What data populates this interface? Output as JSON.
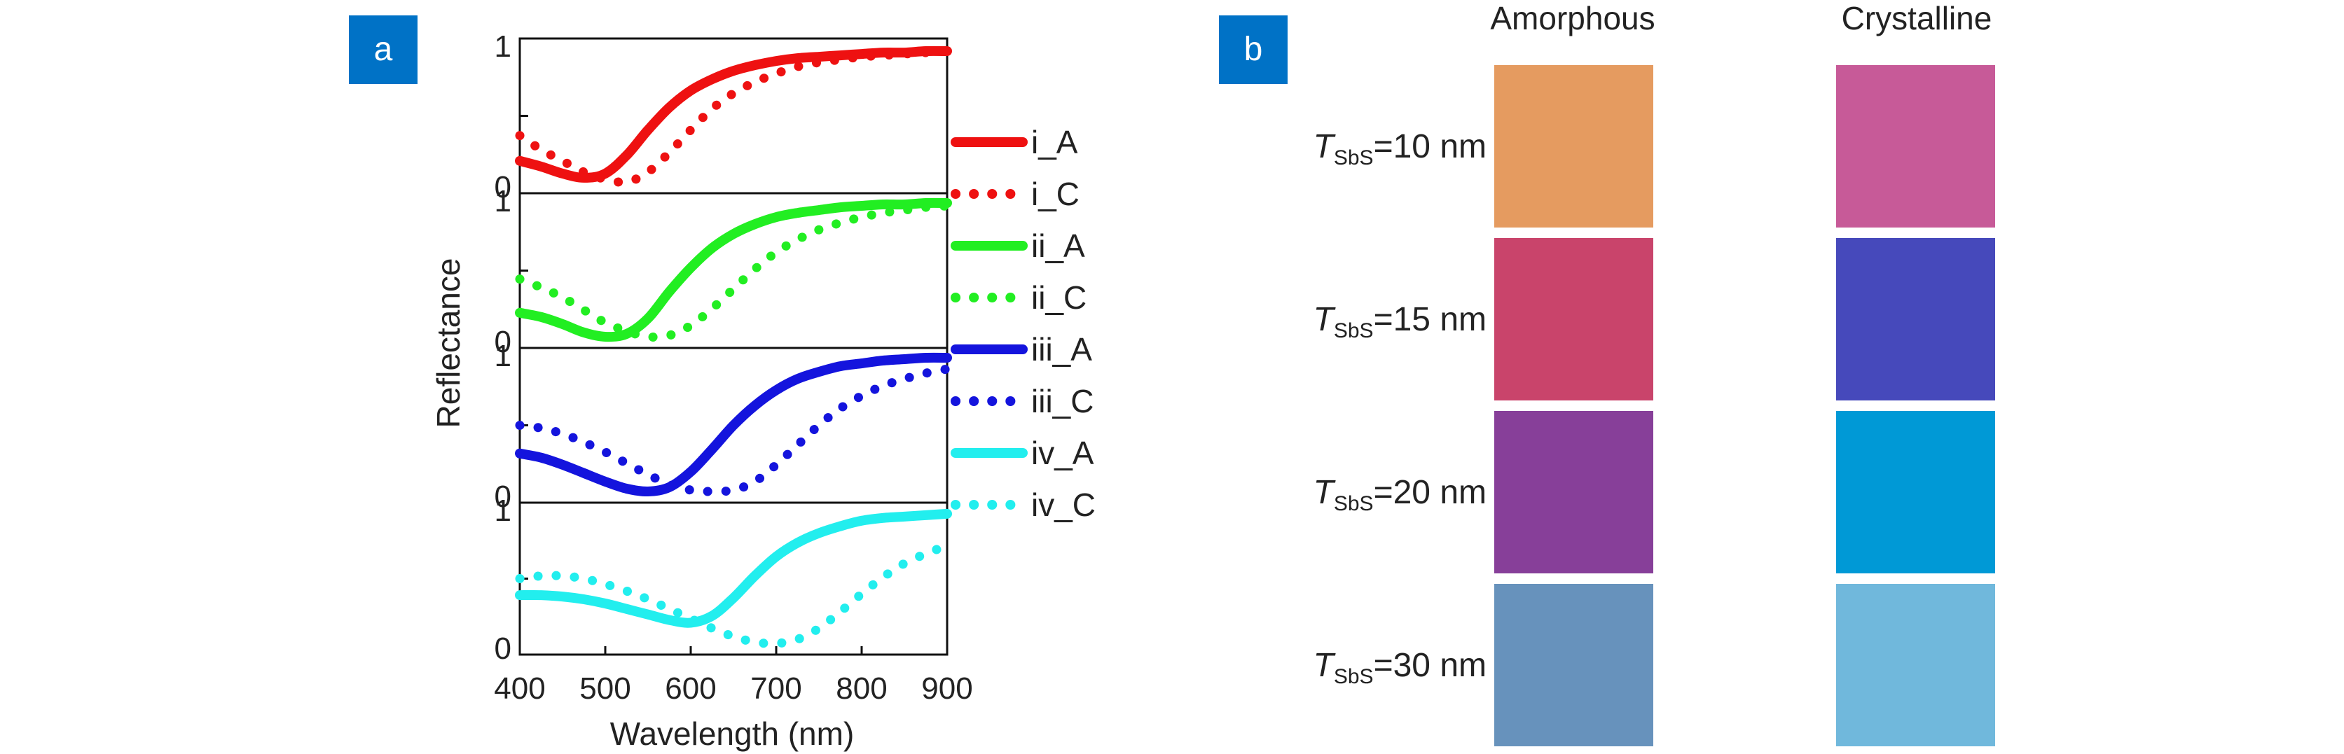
{
  "panel_a": {
    "tag": "a"
  },
  "panel_b": {
    "tag": "b",
    "columns": [
      "Amorphous",
      "Crystalline"
    ],
    "rows": [
      {
        "label_symbol": "T",
        "label_sub": "SbS",
        "label_value": "=10 nm",
        "colors": [
          "#e59b60",
          "#c75a98"
        ]
      },
      {
        "label_symbol": "T",
        "label_sub": "SbS",
        "label_value": "=15 nm",
        "colors": [
          "#c9446b",
          "#4649bb"
        ]
      },
      {
        "label_symbol": "T",
        "label_sub": "SbS",
        "label_value": "=20 nm",
        "colors": [
          "#873f99",
          "#0099d6"
        ]
      },
      {
        "label_symbol": "T",
        "label_sub": "SbS",
        "label_value": "=30 nm",
        "colors": [
          "#6792bc",
          "#70b8dc"
        ]
      }
    ]
  },
  "chart_data": {
    "type": "line",
    "xlabel": "Wavelength (nm)",
    "ylabel": "Reflectance",
    "xlim": [
      400,
      900
    ],
    "x_ticks": [
      400,
      500,
      600,
      700,
      800,
      900
    ],
    "subplot_ylim": [
      0,
      1
    ],
    "subplot_y_tick_labels": [
      "0",
      "1"
    ],
    "x": [
      400,
      425,
      450,
      475,
      500,
      525,
      550,
      575,
      600,
      625,
      650,
      675,
      700,
      725,
      750,
      775,
      800,
      825,
      850,
      875,
      900
    ],
    "series": [
      {
        "name": "i_A",
        "color": "#ee1111",
        "style": "solid",
        "subplot": 0,
        "values": [
          0.18,
          0.14,
          0.09,
          0.06,
          0.09,
          0.22,
          0.4,
          0.56,
          0.68,
          0.76,
          0.82,
          0.86,
          0.89,
          0.91,
          0.92,
          0.93,
          0.94,
          0.95,
          0.95,
          0.96,
          0.96
        ]
      },
      {
        "name": "i_C",
        "color": "#ee1111",
        "style": "dotted",
        "subplot": 0,
        "values": [
          0.36,
          0.26,
          0.18,
          0.1,
          0.05,
          0.03,
          0.1,
          0.24,
          0.4,
          0.55,
          0.66,
          0.74,
          0.8,
          0.85,
          0.88,
          0.9,
          0.92,
          0.93,
          0.94,
          0.95,
          0.96
        ]
      },
      {
        "name": "ii_A",
        "color": "#22ee22",
        "style": "solid",
        "subplot": 1,
        "values": [
          0.2,
          0.17,
          0.12,
          0.06,
          0.03,
          0.05,
          0.16,
          0.35,
          0.52,
          0.66,
          0.76,
          0.83,
          0.88,
          0.91,
          0.93,
          0.95,
          0.96,
          0.97,
          0.97,
          0.98,
          0.98
        ]
      },
      {
        "name": "ii_C",
        "color": "#22ee22",
        "style": "dotted",
        "subplot": 1,
        "values": [
          0.44,
          0.38,
          0.31,
          0.22,
          0.13,
          0.07,
          0.03,
          0.04,
          0.11,
          0.23,
          0.37,
          0.51,
          0.63,
          0.72,
          0.79,
          0.84,
          0.88,
          0.91,
          0.93,
          0.95,
          0.96
        ]
      },
      {
        "name": "iii_A",
        "color": "#1414dd",
        "style": "solid",
        "subplot": 2,
        "values": [
          0.3,
          0.27,
          0.22,
          0.16,
          0.1,
          0.05,
          0.03,
          0.06,
          0.17,
          0.33,
          0.5,
          0.64,
          0.75,
          0.83,
          0.88,
          0.92,
          0.94,
          0.96,
          0.97,
          0.98,
          0.98
        ]
      },
      {
        "name": "iii_C",
        "color": "#1414dd",
        "style": "dotted",
        "subplot": 2,
        "values": [
          0.5,
          0.48,
          0.44,
          0.38,
          0.31,
          0.23,
          0.15,
          0.08,
          0.04,
          0.03,
          0.04,
          0.1,
          0.22,
          0.36,
          0.5,
          0.62,
          0.71,
          0.78,
          0.83,
          0.87,
          0.9
        ]
      },
      {
        "name": "iv_A",
        "color": "#22eeee",
        "style": "solid",
        "subplot": 3,
        "values": [
          0.38,
          0.38,
          0.37,
          0.35,
          0.32,
          0.28,
          0.24,
          0.2,
          0.18,
          0.23,
          0.36,
          0.52,
          0.66,
          0.76,
          0.83,
          0.88,
          0.92,
          0.94,
          0.95,
          0.96,
          0.97
        ]
      },
      {
        "name": "iv_C",
        "color": "#22eeee",
        "style": "dotted",
        "subplot": 3,
        "values": [
          0.5,
          0.52,
          0.52,
          0.5,
          0.46,
          0.41,
          0.35,
          0.28,
          0.21,
          0.14,
          0.08,
          0.04,
          0.03,
          0.06,
          0.14,
          0.26,
          0.39,
          0.51,
          0.61,
          0.68,
          0.74
        ]
      }
    ]
  }
}
